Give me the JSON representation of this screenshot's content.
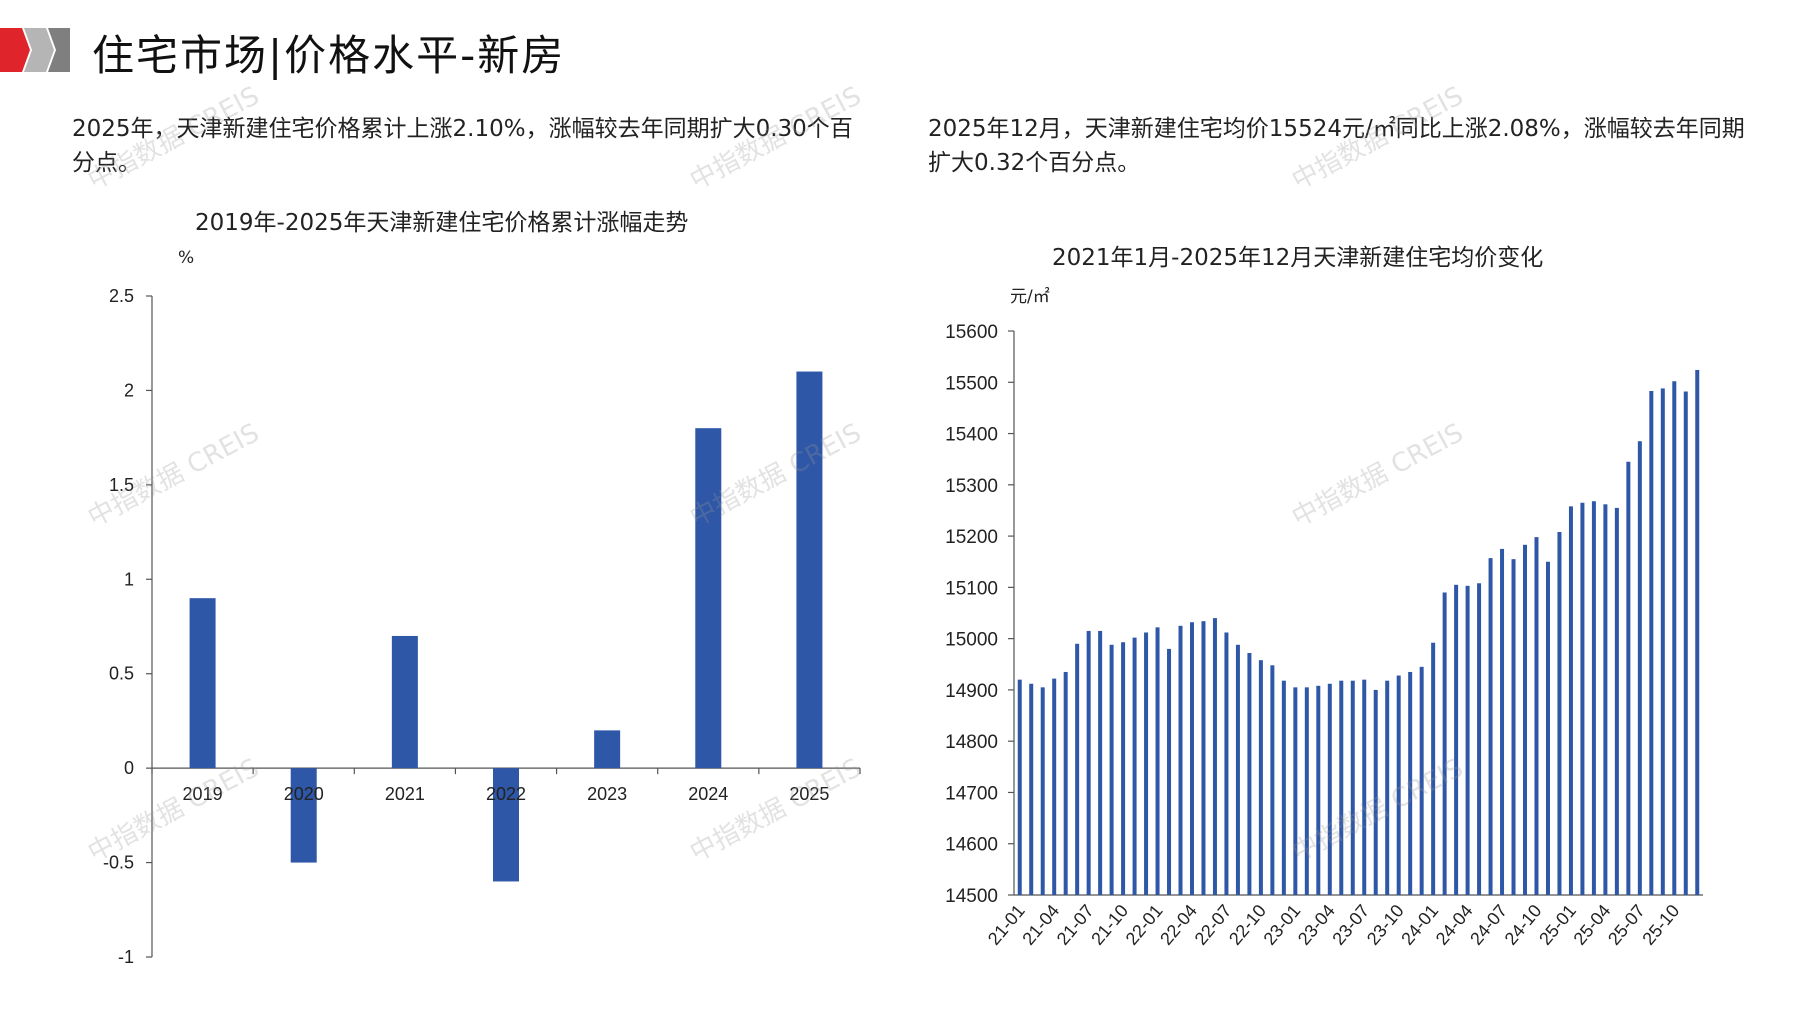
{
  "header": {
    "title": "住宅市场|价格水平-新房"
  },
  "left": {
    "description": "2025年，天津新建住宅价格累计上涨2.10%，涨幅较去年同期扩大0.30个百分点。",
    "chart_title": "2019年-2025年天津新建住宅价格累计涨幅走势",
    "unit": "%"
  },
  "right": {
    "description": "2025年12月，天津新建住宅均价15524元/㎡同比上涨2.08%，涨幅较去年同期扩大0.32个百分点。",
    "chart_title": "2021年1月-2025年12月天津新建住宅均价变化",
    "unit": "元/㎡"
  },
  "watermark": "中指数据 CREIS",
  "colors": {
    "bar": "#2E57A7",
    "logo_red": "#E0242B",
    "logo_gray": "#8C8C8C"
  },
  "chart_data": [
    {
      "type": "bar",
      "title": "2019年-2025年天津新建住宅价格累计涨幅走势",
      "ylabel": "%",
      "categories": [
        "2019",
        "2020",
        "2021",
        "2022",
        "2023",
        "2024",
        "2025"
      ],
      "values": [
        0.9,
        -0.5,
        0.7,
        -0.6,
        0.2,
        1.8,
        2.1
      ],
      "ylim": [
        -1,
        2.5
      ],
      "yticks": [
        "2.5",
        "2",
        "1.5",
        "1",
        "0.5",
        "0",
        "-0.5",
        "-1"
      ],
      "ytick_values": [
        2.5,
        2,
        1.5,
        1,
        0.5,
        0,
        -0.5,
        -1
      ],
      "grid": false
    },
    {
      "type": "bar",
      "title": "2021年1月-2025年12月天津新建住宅均价变化",
      "ylabel": "元/㎡",
      "ylim": [
        14500,
        15600
      ],
      "yticks": [
        "15600",
        "15500",
        "15400",
        "15300",
        "15200",
        "15100",
        "15000",
        "14900",
        "14800",
        "14700",
        "14600",
        "14500"
      ],
      "ytick_values": [
        15600,
        15500,
        15400,
        15300,
        15200,
        15100,
        15000,
        14900,
        14800,
        14700,
        14600,
        14500
      ],
      "xtick_labels": [
        "21-01",
        "21-04",
        "21-07",
        "21-10",
        "22-01",
        "22-04",
        "22-07",
        "22-10",
        "23-01",
        "23-04",
        "23-07",
        "23-10",
        "24-01",
        "24-04",
        "24-07",
        "24-10",
        "25-01",
        "25-04",
        "25-07",
        "25-10"
      ],
      "values": [
        14920,
        14912,
        14905,
        14922,
        14935,
        14990,
        15015,
        15015,
        14988,
        14993,
        15002,
        15012,
        15022,
        14980,
        15025,
        15032,
        15034,
        15040,
        15012,
        14988,
        14972,
        14958,
        14948,
        14918,
        14905,
        14905,
        14908,
        14912,
        14918,
        14918,
        14920,
        14900,
        14918,
        14928,
        14935,
        14945,
        14992,
        15090,
        15105,
        15103,
        15108,
        15157,
        15175,
        15155,
        15183,
        15198,
        15150,
        15208,
        15258,
        15265,
        15268,
        15262,
        15255,
        15345,
        15385,
        15483,
        15488,
        15502,
        15482,
        15524
      ],
      "grid": false
    }
  ]
}
